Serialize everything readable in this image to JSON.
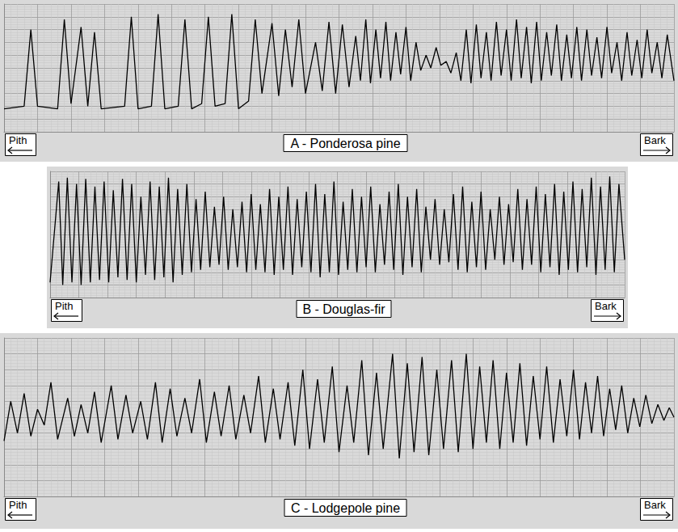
{
  "chart_data": [
    {
      "type": "line",
      "title": "A - Ponderosa pine",
      "annotations": [
        "Pith",
        "Bark"
      ],
      "color": "#000000",
      "grid": true,
      "tick_labels": false,
      "xlim": [
        0,
        100
      ],
      "ylim": [
        0,
        100
      ],
      "xticks": [
        0,
        5,
        10,
        15,
        20,
        25,
        30,
        35,
        40,
        45,
        50,
        55,
        60,
        65,
        70,
        75,
        80,
        85,
        90,
        95,
        100
      ],
      "yticks": [
        0,
        10,
        20,
        30,
        40,
        50,
        60,
        70,
        80,
        90,
        100
      ],
      "x": [
        0,
        3,
        4,
        5,
        8,
        9,
        10,
        11.5,
        12.5,
        13.5,
        14.5,
        18,
        19,
        20,
        22,
        23,
        24,
        26,
        27,
        28,
        29.5,
        30.5,
        31.5,
        33,
        34,
        35,
        36.5,
        37.5,
        38.5,
        40,
        41,
        42,
        43,
        44,
        45,
        46.5,
        47.5,
        48.5,
        49.5,
        50.5,
        51.5,
        52.5,
        53.2,
        54,
        54.7,
        55.5,
        56.2,
        57,
        57.7,
        58.5,
        59.2,
        60,
        60.7,
        61.5,
        62.2,
        63,
        63.7,
        64.5,
        65.2,
        66,
        66.7,
        67.5,
        68.2,
        69,
        69.7,
        70.5,
        71.2,
        72,
        72.7,
        73.5,
        74.2,
        75,
        75.7,
        76.5,
        77.2,
        78,
        78.7,
        79.5,
        80.2,
        81,
        81.7,
        82.5,
        83.2,
        84,
        84.7,
        85.5,
        86.2,
        87,
        87.7,
        88.5,
        89.2,
        90,
        90.7,
        91.5,
        92.2,
        93,
        93.7,
        94.5,
        95.2,
        96,
        96.7,
        97.5,
        98.2,
        99,
        100
      ],
      "values": [
        18,
        20,
        80,
        20,
        18,
        88,
        22,
        82,
        20,
        78,
        18,
        20,
        90,
        18,
        20,
        92,
        18,
        20,
        88,
        18,
        22,
        90,
        20,
        22,
        92,
        18,
        24,
        88,
        30,
        85,
        28,
        80,
        35,
        88,
        30,
        70,
        32,
        86,
        30,
        84,
        35,
        75,
        40,
        88,
        38,
        80,
        42,
        86,
        40,
        78,
        45,
        82,
        40,
        70,
        48,
        60,
        50,
        66,
        52,
        55,
        46,
        62,
        40,
        80,
        38,
        84,
        42,
        78,
        40,
        86,
        44,
        80,
        40,
        88,
        42,
        82,
        38,
        86,
        40,
        78,
        44,
        84,
        40,
        76,
        42,
        82,
        40,
        80,
        44,
        74,
        42,
        82,
        46,
        70,
        40,
        78,
        44,
        72,
        42,
        80,
        46,
        70,
        42,
        76,
        40
      ]
    },
    {
      "type": "line",
      "title": "B - Douglas-fir",
      "annotations": [
        "Pith",
        "Bark"
      ],
      "color": "#000000",
      "grid": true,
      "tick_labels": false,
      "xlim": [
        0,
        100
      ],
      "ylim": [
        0,
        100
      ],
      "xticks": [
        0,
        5,
        10,
        15,
        20,
        25,
        30,
        35,
        40,
        45,
        50,
        55,
        60,
        65,
        70,
        75,
        80,
        85,
        90,
        95,
        100
      ],
      "yticks": [
        0,
        10,
        20,
        30,
        40,
        50,
        60,
        70,
        80,
        90,
        100
      ],
      "x": [
        0,
        1.5,
        2.2,
        3,
        3.8,
        4.6,
        5.4,
        6.2,
        7,
        7.8,
        8.6,
        9.4,
        10.2,
        11,
        11.8,
        12.6,
        13.4,
        14.2,
        15,
        15.8,
        16.6,
        17.4,
        18.2,
        19,
        19.8,
        20.6,
        21.4,
        22.2,
        23,
        23.8,
        24.6,
        25.4,
        26.2,
        27,
        27.8,
        28.6,
        29.4,
        30.2,
        31,
        31.8,
        32.6,
        33.4,
        34.2,
        35,
        35.8,
        36.6,
        37.4,
        38.2,
        39,
        39.8,
        40.6,
        41.4,
        42.2,
        43,
        43.8,
        44.6,
        45.4,
        46.2,
        47,
        47.8,
        48.6,
        49.4,
        50.2,
        51,
        51.8,
        52.6,
        53.4,
        54.2,
        55,
        55.8,
        56.6,
        57.4,
        58.2,
        59,
        59.8,
        60.6,
        61.4,
        62.2,
        63,
        63.8,
        64.6,
        65.4,
        66.2,
        67,
        67.8,
        68.6,
        69.4,
        70.2,
        71,
        71.8,
        72.6,
        73.4,
        74.2,
        75,
        75.8,
        76.6,
        77.4,
        78.2,
        79,
        79.8,
        80.6,
        81.4,
        82.2,
        83,
        83.8,
        84.6,
        85.4,
        86.2,
        87,
        87.8,
        88.6,
        89.4,
        90.2,
        91,
        91.8,
        92.6,
        93.4,
        94.2,
        95,
        95.8,
        96.6,
        97.4,
        98.2,
        99,
        100
      ],
      "values": [
        12,
        92,
        10,
        95,
        12,
        90,
        10,
        94,
        12,
        88,
        14,
        92,
        12,
        85,
        16,
        94,
        14,
        90,
        12,
        80,
        18,
        92,
        14,
        88,
        16,
        95,
        12,
        86,
        18,
        90,
        20,
        78,
        22,
        84,
        24,
        72,
        26,
        80,
        22,
        70,
        24,
        76,
        20,
        82,
        22,
        74,
        20,
        86,
        18,
        80,
        22,
        88,
        18,
        78,
        24,
        84,
        20,
        90,
        16,
        82,
        20,
        92,
        18,
        76,
        22,
        86,
        20,
        80,
        24,
        88,
        20,
        74,
        26,
        84,
        22,
        90,
        18,
        80,
        24,
        86,
        20,
        72,
        30,
        78,
        26,
        70,
        28,
        82,
        22,
        88,
        20,
        76,
        24,
        84,
        22,
        70,
        30,
        80,
        26,
        74,
        28,
        86,
        22,
        78,
        26,
        88,
        20,
        82,
        24,
        90,
        18,
        84,
        22,
        92,
        20,
        86,
        24,
        95,
        18,
        88,
        22,
        96,
        20,
        90,
        30
      ]
    },
    {
      "type": "line",
      "title": "C - Lodgepole pine",
      "annotations": [
        "Pith",
        "Bark"
      ],
      "color": "#000000",
      "grid": true,
      "tick_labels": false,
      "xlim": [
        0,
        100
      ],
      "ylim": [
        0,
        100
      ],
      "xticks": [
        0,
        5,
        10,
        15,
        20,
        25,
        30,
        35,
        40,
        45,
        50,
        55,
        60,
        65,
        70,
        75,
        80,
        85,
        90,
        95,
        100
      ],
      "yticks": [
        0,
        10,
        20,
        30,
        40,
        50,
        60,
        70,
        80,
        90,
        100
      ],
      "x": [
        0,
        1,
        2,
        3,
        4,
        5,
        6,
        7,
        8,
        9.5,
        10.5,
        11.5,
        12.5,
        13.5,
        14.5,
        16,
        17,
        18.2,
        19.2,
        20.4,
        21.4,
        22.6,
        23.6,
        24.8,
        25.8,
        27,
        28,
        29.2,
        30.2,
        31.4,
        32.4,
        33.6,
        34.6,
        35.8,
        36.8,
        38,
        39,
        40.2,
        41.2,
        42.4,
        43.4,
        44.6,
        45.6,
        46.8,
        47.8,
        49,
        50,
        51.2,
        52.2,
        53.4,
        54.4,
        55.6,
        56.6,
        58,
        59,
        60.2,
        61.2,
        62.4,
        63.4,
        64.6,
        65.6,
        66.8,
        67.8,
        69,
        70,
        71,
        72,
        73,
        74,
        75,
        76,
        77,
        78,
        79,
        80,
        81,
        82,
        83,
        84,
        85,
        85.9,
        86.8,
        87.7,
        88.6,
        89.5,
        90.4,
        91.3,
        92.2,
        93.1,
        94,
        94.9,
        95.8,
        96.7,
        97.6,
        98.5,
        99.3,
        100
      ],
      "values": [
        35,
        60,
        40,
        65,
        38,
        55,
        45,
        72,
        36,
        62,
        38,
        58,
        40,
        66,
        34,
        70,
        36,
        64,
        40,
        60,
        36,
        72,
        34,
        68,
        38,
        62,
        40,
        74,
        34,
        66,
        38,
        70,
        36,
        64,
        40,
        76,
        34,
        68,
        36,
        72,
        32,
        80,
        30,
        74,
        34,
        82,
        28,
        70,
        34,
        86,
        26,
        78,
        30,
        90,
        24,
        84,
        28,
        88,
        26,
        80,
        30,
        86,
        28,
        90,
        30,
        82,
        34,
        86,
        30,
        78,
        34,
        84,
        32,
        76,
        36,
        82,
        34,
        74,
        38,
        80,
        36,
        72,
        40,
        76,
        38,
        68,
        42,
        70,
        40,
        62,
        44,
        64,
        46,
        58,
        48,
        56,
        50
      ]
    }
  ]
}
